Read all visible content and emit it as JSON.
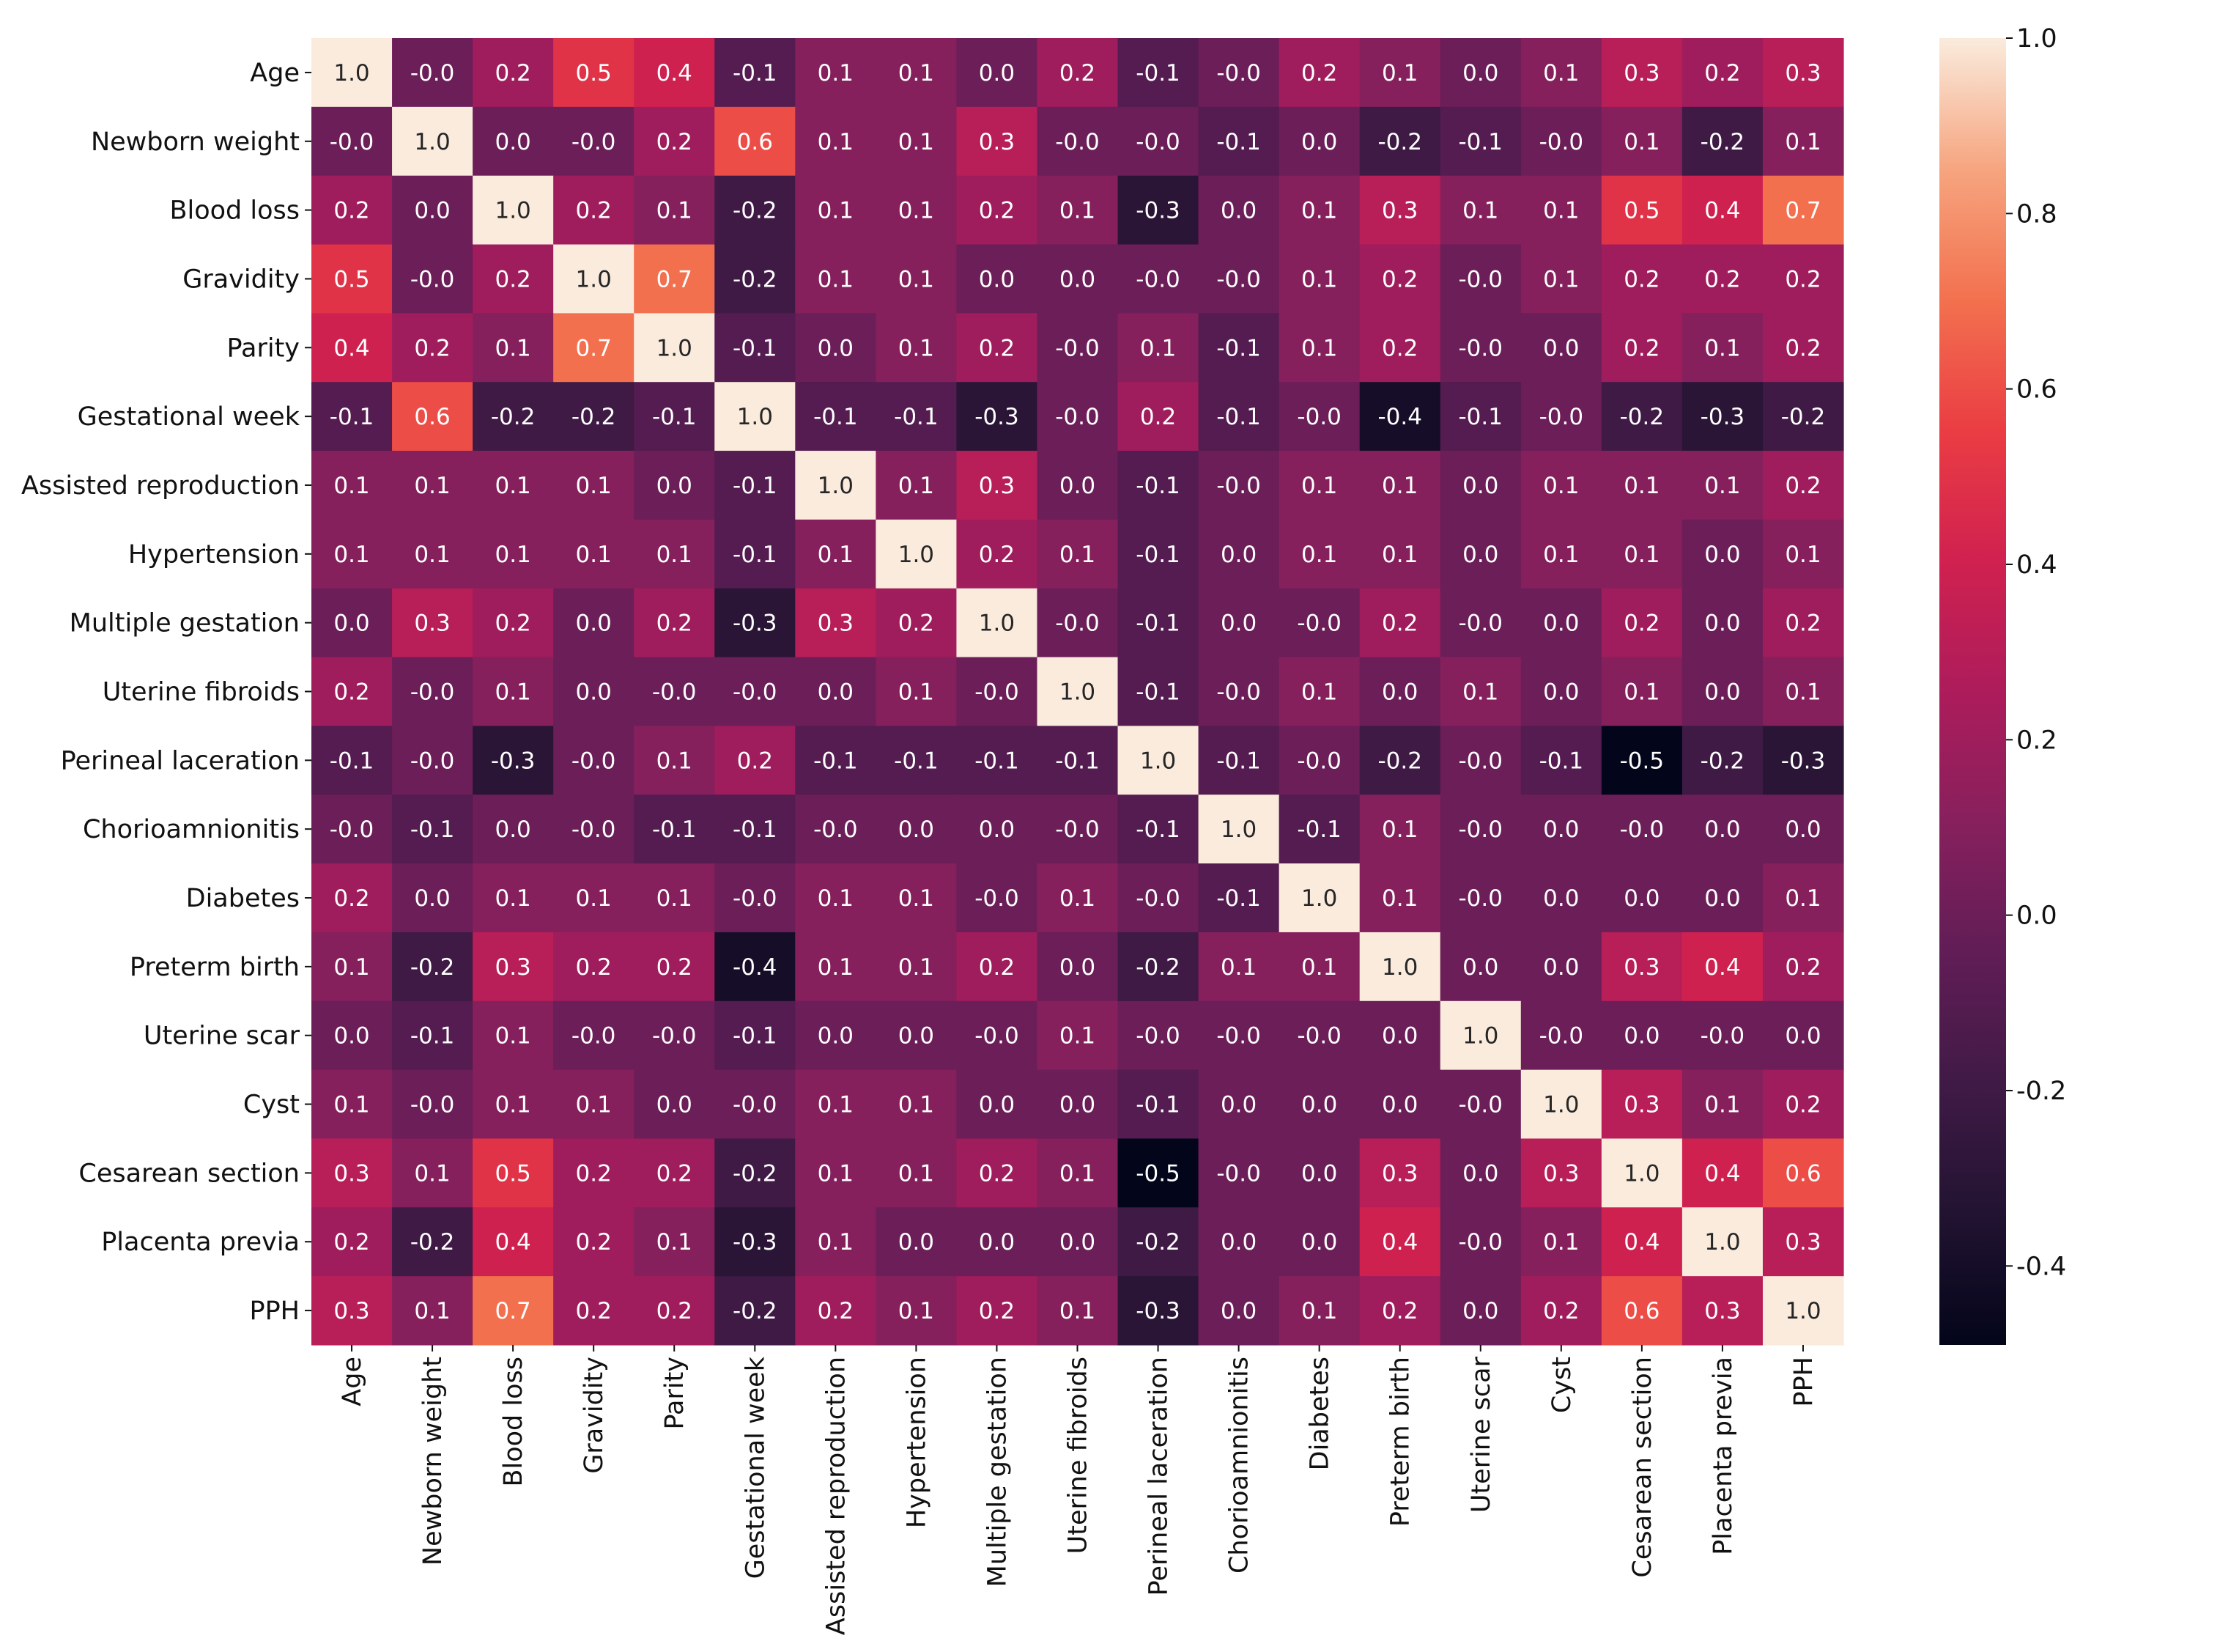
{
  "chart_data": {
    "type": "heatmap",
    "title": "",
    "labels": [
      "Age",
      "Newborn weight",
      "Blood loss",
      "Gravidity",
      "Parity",
      "Gestational week",
      "Assisted reproduction",
      "Hypertension",
      "Multiple gestation",
      "Uterine fibroids",
      "Perineal laceration",
      "Chorioamnionitis",
      "Diabetes",
      "Preterm birth",
      "Uterine scar",
      "Cyst",
      "Cesarean section",
      "Placenta previa",
      "PPH"
    ],
    "matrix": [
      [
        "1.0",
        "-0.0",
        "0.2",
        "0.5",
        "0.4",
        "-0.1",
        "0.1",
        "0.1",
        "0.0",
        "0.2",
        "-0.1",
        "-0.0",
        "0.2",
        "0.1",
        "0.0",
        "0.1",
        "0.3",
        "0.2",
        "0.3"
      ],
      [
        "-0.0",
        "1.0",
        "0.0",
        "-0.0",
        "0.2",
        "0.6",
        "0.1",
        "0.1",
        "0.3",
        "-0.0",
        "-0.0",
        "-0.1",
        "0.0",
        "-0.2",
        "-0.1",
        "-0.0",
        "0.1",
        "-0.2",
        "0.1"
      ],
      [
        "0.2",
        "0.0",
        "1.0",
        "0.2",
        "0.1",
        "-0.2",
        "0.1",
        "0.1",
        "0.2",
        "0.1",
        "-0.3",
        "0.0",
        "0.1",
        "0.3",
        "0.1",
        "0.1",
        "0.5",
        "0.4",
        "0.7"
      ],
      [
        "0.5",
        "-0.0",
        "0.2",
        "1.0",
        "0.7",
        "-0.2",
        "0.1",
        "0.1",
        "0.0",
        "0.0",
        "-0.0",
        "-0.0",
        "0.1",
        "0.2",
        "-0.0",
        "0.1",
        "0.2",
        "0.2",
        "0.2"
      ],
      [
        "0.4",
        "0.2",
        "0.1",
        "0.7",
        "1.0",
        "-0.1",
        "0.0",
        "0.1",
        "0.2",
        "-0.0",
        "0.1",
        "-0.1",
        "0.1",
        "0.2",
        "-0.0",
        "0.0",
        "0.2",
        "0.1",
        "0.2"
      ],
      [
        "-0.1",
        "0.6",
        "-0.2",
        "-0.2",
        "-0.1",
        "1.0",
        "-0.1",
        "-0.1",
        "-0.3",
        "-0.0",
        "0.2",
        "-0.1",
        "-0.0",
        "-0.4",
        "-0.1",
        "-0.0",
        "-0.2",
        "-0.3",
        "-0.2"
      ],
      [
        "0.1",
        "0.1",
        "0.1",
        "0.1",
        "0.0",
        "-0.1",
        "1.0",
        "0.1",
        "0.3",
        "0.0",
        "-0.1",
        "-0.0",
        "0.1",
        "0.1",
        "0.0",
        "0.1",
        "0.1",
        "0.1",
        "0.2"
      ],
      [
        "0.1",
        "0.1",
        "0.1",
        "0.1",
        "0.1",
        "-0.1",
        "0.1",
        "1.0",
        "0.2",
        "0.1",
        "-0.1",
        "0.0",
        "0.1",
        "0.1",
        "0.0",
        "0.1",
        "0.1",
        "0.0",
        "0.1"
      ],
      [
        "0.0",
        "0.3",
        "0.2",
        "0.0",
        "0.2",
        "-0.3",
        "0.3",
        "0.2",
        "1.0",
        "-0.0",
        "-0.1",
        "0.0",
        "-0.0",
        "0.2",
        "-0.0",
        "0.0",
        "0.2",
        "0.0",
        "0.2"
      ],
      [
        "0.2",
        "-0.0",
        "0.1",
        "0.0",
        "-0.0",
        "-0.0",
        "0.0",
        "0.1",
        "-0.0",
        "1.0",
        "-0.1",
        "-0.0",
        "0.1",
        "0.0",
        "0.1",
        "0.0",
        "0.1",
        "0.0",
        "0.1"
      ],
      [
        "-0.1",
        "-0.0",
        "-0.3",
        "-0.0",
        "0.1",
        "0.2",
        "-0.1",
        "-0.1",
        "-0.1",
        "-0.1",
        "1.0",
        "-0.1",
        "-0.0",
        "-0.2",
        "-0.0",
        "-0.1",
        "-0.5",
        "-0.2",
        "-0.3"
      ],
      [
        "-0.0",
        "-0.1",
        "0.0",
        "-0.0",
        "-0.1",
        "-0.1",
        "-0.0",
        "0.0",
        "0.0",
        "-0.0",
        "-0.1",
        "1.0",
        "-0.1",
        "0.1",
        "-0.0",
        "0.0",
        "-0.0",
        "0.0",
        "0.0"
      ],
      [
        "0.2",
        "0.0",
        "0.1",
        "0.1",
        "0.1",
        "-0.0",
        "0.1",
        "0.1",
        "-0.0",
        "0.1",
        "-0.0",
        "-0.1",
        "1.0",
        "0.1",
        "-0.0",
        "0.0",
        "0.0",
        "0.0",
        "0.1"
      ],
      [
        "0.1",
        "-0.2",
        "0.3",
        "0.2",
        "0.2",
        "-0.4",
        "0.1",
        "0.1",
        "0.2",
        "0.0",
        "-0.2",
        "0.1",
        "0.1",
        "1.0",
        "0.0",
        "0.0",
        "0.3",
        "0.4",
        "0.2"
      ],
      [
        "0.0",
        "-0.1",
        "0.1",
        "-0.0",
        "-0.0",
        "-0.1",
        "0.0",
        "0.0",
        "-0.0",
        "0.1",
        "-0.0",
        "-0.0",
        "-0.0",
        "0.0",
        "1.0",
        "-0.0",
        "0.0",
        "-0.0",
        "0.0"
      ],
      [
        "0.1",
        "-0.0",
        "0.1",
        "0.1",
        "0.0",
        "-0.0",
        "0.1",
        "0.1",
        "0.0",
        "0.0",
        "-0.1",
        "0.0",
        "0.0",
        "0.0",
        "-0.0",
        "1.0",
        "0.3",
        "0.1",
        "0.2"
      ],
      [
        "0.3",
        "0.1",
        "0.5",
        "0.2",
        "0.2",
        "-0.2",
        "0.1",
        "0.1",
        "0.2",
        "0.1",
        "-0.5",
        "-0.0",
        "0.0",
        "0.3",
        "0.0",
        "0.3",
        "1.0",
        "0.4",
        "0.6"
      ],
      [
        "0.2",
        "-0.2",
        "0.4",
        "0.2",
        "0.1",
        "-0.3",
        "0.1",
        "0.0",
        "0.0",
        "0.0",
        "-0.2",
        "0.0",
        "0.0",
        "0.4",
        "-0.0",
        "0.1",
        "0.4",
        "1.0",
        "0.3"
      ],
      [
        "0.3",
        "0.1",
        "0.7",
        "0.2",
        "0.2",
        "-0.2",
        "0.2",
        "0.1",
        "0.2",
        "0.1",
        "-0.3",
        "0.0",
        "0.1",
        "0.2",
        "0.0",
        "0.2",
        "0.6",
        "0.3",
        "1.0"
      ]
    ],
    "colorbar": {
      "range": [
        -0.49,
        1.0
      ],
      "ticks": [
        "-0.4",
        "-0.2",
        "0.0",
        "0.2",
        "0.4",
        "0.6",
        "0.8",
        "1.0"
      ],
      "colormap": "rocket",
      "placement": "right"
    }
  }
}
